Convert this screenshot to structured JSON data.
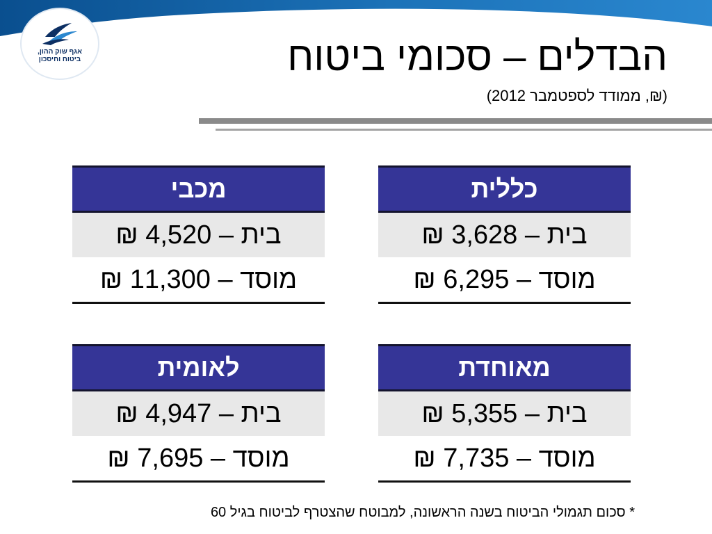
{
  "logo": {
    "line1": "אגף שוק ההון,",
    "line2": "ביטוח וחיסכון"
  },
  "title": "הבדלים – סכומי ביטוח",
  "subtitle": "(₪, ממודד לספטמבר 2012)",
  "cards": {
    "klalit": {
      "name": "כללית",
      "home": "בית – 3,628 ₪",
      "institution": "מוסד – 6,295 ₪"
    },
    "maccabi": {
      "name": "מכבי",
      "home": "בית – 4,520 ₪",
      "institution": "מוסד – 11,300 ₪"
    },
    "meuhedet": {
      "name": "מאוחדת",
      "home": "בית – 5,355 ₪",
      "institution": "מוסד – 7,735 ₪"
    },
    "leumit": {
      "name": "לאומית",
      "home": "בית – 4,947 ₪",
      "institution": "מוסד – 7,695 ₪"
    }
  },
  "footnote": "* סכום תגמולי הביטוח בשנה הראשונה, למבוטח שהצטרף לביטוח בגיל 60",
  "colors": {
    "header_fill": "#353597",
    "header_text": "#ffffff",
    "band_blue": "#1a7bc7"
  }
}
